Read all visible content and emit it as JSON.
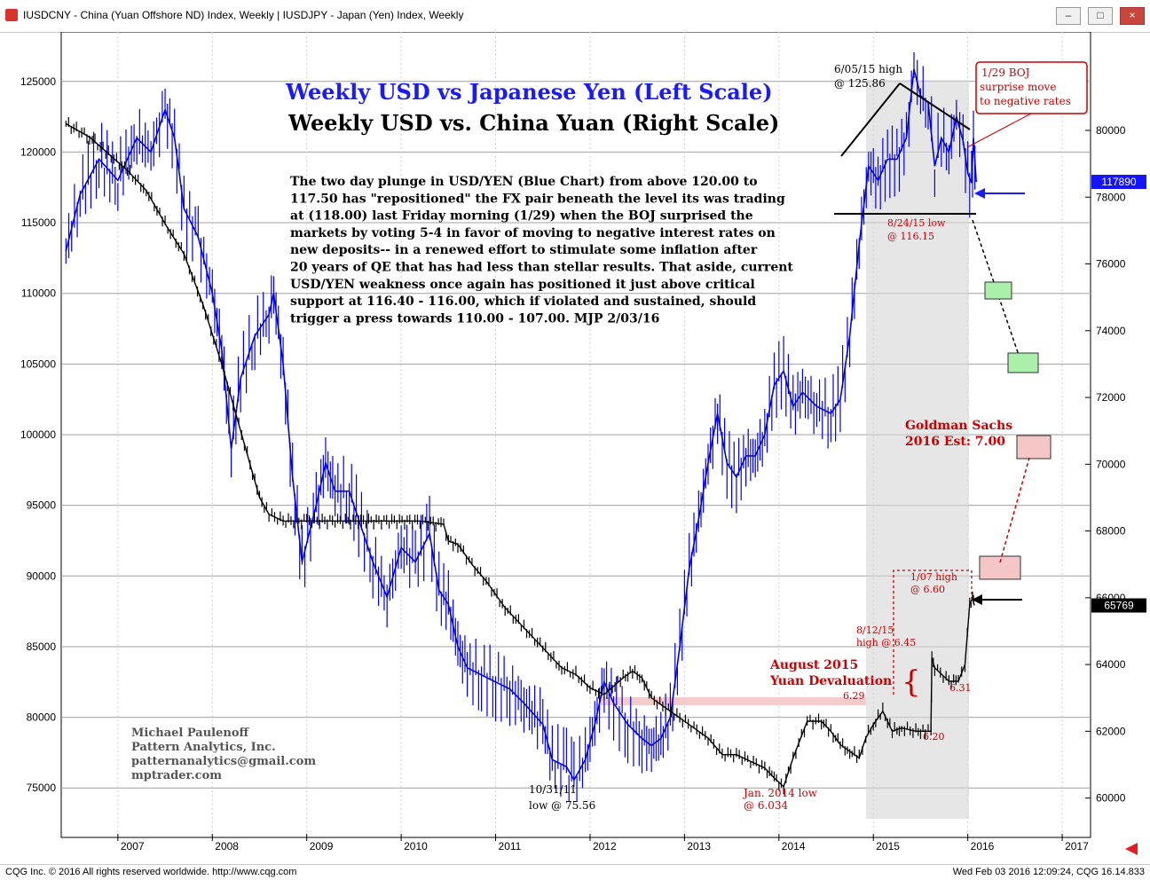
{
  "window": {
    "title": "IUSDCNY - China (Yuan Offshore ND) Index, Weekly   |   IUSDJPY - Japan (Yen) Index, Weekly",
    "buttons": {
      "minimize": "–",
      "restore": "□",
      "close": "×"
    }
  },
  "status": {
    "left": "CQG Inc. © 2016 All rights reserved worldwide. http://www.cqg.com",
    "right": "Wed Feb 03 2016 12:09:24, CQG 16.14.833"
  },
  "chart_data": {
    "type": "line",
    "title": "Weekly USD vs Japanese Yen (Left Scale)",
    "subtitle": "Weekly USD vs. China Yuan (Right Scale)",
    "commentary": [
      "The two day plunge in USD/YEN (Blue Chart) from above 120.00 to",
      "117.50 has \"repositioned\" the FX pair beneath the level its was trading",
      "at (118.00) last Friday morning (1/29) when the BOJ surprised the",
      "markets by voting 5-4 in favor of moving to negative interest rates on",
      "new deposits-- in a renewed effort to stimulate some inflation after",
      "20 years of QE that has had less than stellar results. That aside, current",
      "USD/YEN weakness once again has positioned it just above critical",
      "support at 116.40 - 116.00, which if violated and sustained, should",
      "trigger a press towards 110.00 - 107.00.  MJP 2/03/16"
    ],
    "x_axis": {
      "labels": [
        "2007",
        "2008",
        "2009",
        "2010",
        "2011",
        "2012",
        "2013",
        "2014",
        "2015",
        "2016",
        "2017"
      ],
      "range": [
        2006.4,
        2017.3
      ]
    },
    "left_axis": {
      "ticks": [
        "125000",
        "120000",
        "115000",
        "110000",
        "105000",
        "100000",
        "95000",
        "90000",
        "85000",
        "80000",
        "75000"
      ],
      "range": [
        71500,
        128500
      ]
    },
    "right_axis": {
      "ticks": [
        "80000",
        "78000",
        "76000",
        "74000",
        "72000",
        "70000",
        "68000",
        "66000",
        "64000",
        "62000",
        "60000"
      ],
      "range": [
        58820,
        82950
      ]
    },
    "grid": true,
    "series": [
      {
        "name": "IUSDJPY",
        "color": "#0000ee",
        "axis": "left",
        "points": [
          [
            2006.45,
            113000
          ],
          [
            2006.6,
            117000
          ],
          [
            2006.8,
            119500
          ],
          [
            2007.0,
            118000
          ],
          [
            2007.2,
            121000
          ],
          [
            2007.35,
            120000
          ],
          [
            2007.5,
            123000
          ],
          [
            2007.6,
            121000
          ],
          [
            2007.7,
            116000
          ],
          [
            2007.85,
            114000
          ],
          [
            2008.0,
            110000
          ],
          [
            2008.1,
            106000
          ],
          [
            2008.2,
            99000
          ],
          [
            2008.3,
            104000
          ],
          [
            2008.45,
            107000
          ],
          [
            2008.6,
            108500
          ],
          [
            2008.65,
            110000
          ],
          [
            2008.75,
            105000
          ],
          [
            2008.85,
            97000
          ],
          [
            2008.95,
            91000
          ],
          [
            2009.1,
            95000
          ],
          [
            2009.2,
            98000
          ],
          [
            2009.3,
            96000
          ],
          [
            2009.45,
            96000
          ],
          [
            2009.55,
            94000
          ],
          [
            2009.7,
            91000
          ],
          [
            2009.85,
            88500
          ],
          [
            2010.0,
            92000
          ],
          [
            2010.15,
            91000
          ],
          [
            2010.3,
            93000
          ],
          [
            2010.4,
            89000
          ],
          [
            2010.5,
            88000
          ],
          [
            2010.6,
            85000
          ],
          [
            2010.7,
            83500
          ],
          [
            2010.85,
            83000
          ],
          [
            2011.0,
            82500
          ],
          [
            2011.15,
            82000
          ],
          [
            2011.3,
            81000
          ],
          [
            2011.5,
            79500
          ],
          [
            2011.6,
            77000
          ],
          [
            2011.75,
            76500
          ],
          [
            2011.83,
            75560
          ],
          [
            2011.95,
            77000
          ],
          [
            2012.05,
            79500
          ],
          [
            2012.15,
            82500
          ],
          [
            2012.25,
            81000
          ],
          [
            2012.4,
            79500
          ],
          [
            2012.55,
            78500
          ],
          [
            2012.65,
            78000
          ],
          [
            2012.75,
            78500
          ],
          [
            2012.85,
            80000
          ],
          [
            2012.95,
            85000
          ],
          [
            2013.05,
            90500
          ],
          [
            2013.15,
            94000
          ],
          [
            2013.25,
            98000
          ],
          [
            2013.35,
            101500
          ],
          [
            2013.45,
            98000
          ],
          [
            2013.55,
            97000
          ],
          [
            2013.65,
            98500
          ],
          [
            2013.75,
            98500
          ],
          [
            2013.85,
            100000
          ],
          [
            2013.95,
            103500
          ],
          [
            2014.05,
            104500
          ],
          [
            2014.15,
            102000
          ],
          [
            2014.25,
            103000
          ],
          [
            2014.4,
            102000
          ],
          [
            2014.55,
            101500
          ],
          [
            2014.65,
            102500
          ],
          [
            2014.75,
            107000
          ],
          [
            2014.85,
            113500
          ],
          [
            2014.95,
            119000
          ],
          [
            2015.05,
            118000
          ],
          [
            2015.15,
            119500
          ],
          [
            2015.25,
            119500
          ],
          [
            2015.35,
            121000
          ],
          [
            2015.43,
            125860
          ],
          [
            2015.5,
            124000
          ],
          [
            2015.58,
            123500
          ],
          [
            2015.65,
            119000
          ],
          [
            2015.72,
            121000
          ],
          [
            2015.8,
            120000
          ],
          [
            2015.88,
            122500
          ],
          [
            2015.95,
            120800
          ],
          [
            2016.0,
            118500
          ],
          [
            2016.04,
            117800
          ],
          [
            2016.06,
            121000
          ],
          [
            2016.09,
            117890
          ]
        ]
      },
      {
        "name": "IUSDCNY",
        "color": "#000000",
        "axis": "right",
        "points": [
          [
            2006.45,
            80200
          ],
          [
            2006.7,
            79800
          ],
          [
            2006.9,
            79300
          ],
          [
            2007.1,
            78800
          ],
          [
            2007.3,
            78200
          ],
          [
            2007.5,
            77200
          ],
          [
            2007.7,
            76300
          ],
          [
            2007.9,
            74800
          ],
          [
            2008.1,
            73000
          ],
          [
            2008.25,
            71500
          ],
          [
            2008.4,
            70000
          ],
          [
            2008.5,
            69000
          ],
          [
            2008.6,
            68500
          ],
          [
            2008.75,
            68300
          ],
          [
            2009.0,
            68300
          ],
          [
            2009.3,
            68300
          ],
          [
            2009.6,
            68300
          ],
          [
            2009.9,
            68300
          ],
          [
            2010.2,
            68300
          ],
          [
            2010.45,
            68200
          ],
          [
            2010.5,
            67700
          ],
          [
            2010.6,
            67600
          ],
          [
            2010.75,
            67000
          ],
          [
            2010.9,
            66500
          ],
          [
            2011.1,
            65700
          ],
          [
            2011.3,
            65100
          ],
          [
            2011.5,
            64500
          ],
          [
            2011.7,
            63900
          ],
          [
            2011.85,
            63700
          ],
          [
            2012.0,
            63300
          ],
          [
            2012.15,
            63100
          ],
          [
            2012.35,
            63600
          ],
          [
            2012.45,
            63800
          ],
          [
            2012.55,
            63600
          ],
          [
            2012.65,
            63000
          ],
          [
            2012.8,
            62700
          ],
          [
            2012.95,
            62400
          ],
          [
            2013.1,
            62100
          ],
          [
            2013.25,
            61800
          ],
          [
            2013.4,
            61300
          ],
          [
            2013.55,
            61300
          ],
          [
            2013.7,
            61100
          ],
          [
            2013.85,
            60900
          ],
          [
            2013.95,
            60600
          ],
          [
            2014.05,
            60340
          ],
          [
            2014.15,
            61200
          ],
          [
            2014.3,
            62300
          ],
          [
            2014.45,
            62300
          ],
          [
            2014.55,
            62000
          ],
          [
            2014.65,
            61600
          ],
          [
            2014.75,
            61400
          ],
          [
            2014.85,
            61200
          ],
          [
            2014.92,
            61800
          ],
          [
            2015.0,
            62200
          ],
          [
            2015.1,
            62600
          ],
          [
            2015.2,
            62000
          ],
          [
            2015.3,
            62100
          ],
          [
            2015.45,
            62000
          ],
          [
            2015.55,
            62000
          ],
          [
            2015.61,
            62000
          ],
          [
            2015.62,
            64200
          ],
          [
            2015.65,
            63900
          ],
          [
            2015.8,
            63500
          ],
          [
            2015.9,
            63500
          ],
          [
            2015.97,
            64000
          ],
          [
            2016.02,
            65800
          ],
          [
            2016.05,
            66000
          ],
          [
            2016.07,
            65769
          ]
        ]
      }
    ],
    "annotations": [
      {
        "text": "6/05/15 high",
        "color": "#000000"
      },
      {
        "text": "@ 125.86",
        "color": "#000000"
      },
      {
        "text": "1/29 BOJ",
        "color": "#cc0000"
      },
      {
        "text": "surprise move",
        "color": "#cc0000"
      },
      {
        "text": "to negative rates",
        "color": "#cc0000"
      },
      {
        "text": "8/24/15 low",
        "color": "#cc0000"
      },
      {
        "text": "@ 116.15",
        "color": "#cc0000"
      },
      {
        "text": "Goldman Sachs",
        "color": "#cc0000"
      },
      {
        "text": "2016 Est: 7.00",
        "color": "#cc0000"
      },
      {
        "text": "1/07 high",
        "color": "#cc0000"
      },
      {
        "text": "@ 6.60",
        "color": "#cc0000"
      },
      {
        "text": "8/12/15",
        "color": "#cc0000"
      },
      {
        "text": "high @ 6.45",
        "color": "#cc0000"
      },
      {
        "text": "August 2015",
        "color": "#cc0000"
      },
      {
        "text": "Yuan Devaluation",
        "color": "#cc0000"
      },
      {
        "text": "6.29",
        "color": "#cc0000"
      },
      {
        "text": "6.31",
        "color": "#cc0000"
      },
      {
        "text": "6.20",
        "color": "#cc0000"
      },
      {
        "text": "10/31/11",
        "color": "#000000"
      },
      {
        "text": "low @ 75.56",
        "color": "#000000"
      },
      {
        "text": "Jan. 2014 low",
        "color": "#cc0000"
      },
      {
        "text": "@ 6.034",
        "color": "#cc0000"
      }
    ],
    "credits": [
      "Michael Paulenoff",
      "Pattern Analytics, Inc.",
      "patternanalytics@gmail.com",
      "mptrader.com"
    ],
    "last_values": {
      "left": "117890",
      "right": "65769"
    }
  }
}
